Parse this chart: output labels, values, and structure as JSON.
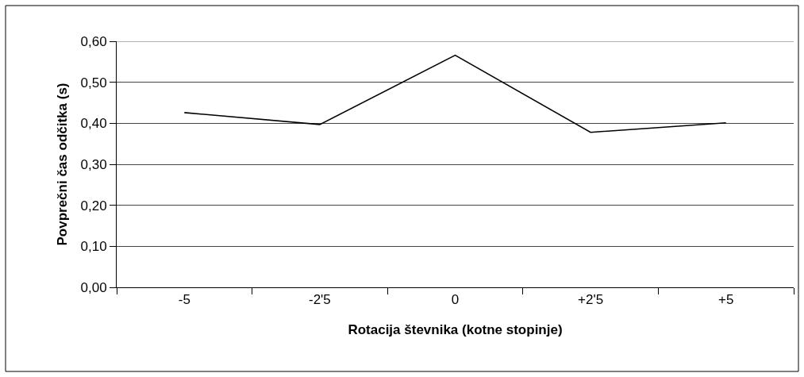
{
  "chart_data": {
    "type": "line",
    "xlabel": "Rotacija števnika (kotne stopinje)",
    "ylabel": "Povprečni čas odčitka (s)",
    "categories": [
      "-5",
      "-2'5",
      "0",
      "+2'5",
      "+5"
    ],
    "series": [
      {
        "color": "#000000",
        "values": [
          0.426,
          0.397,
          0.566,
          0.378,
          0.401
        ]
      }
    ],
    "ylim": [
      0,
      0.6
    ],
    "yticks": [
      {
        "value": 0,
        "label": "0,00"
      },
      {
        "value": 0.1,
        "label": "0,10"
      },
      {
        "value": 0.2,
        "label": "0,20"
      },
      {
        "value": 0.3,
        "label": "0,30"
      },
      {
        "value": 0.4,
        "label": "0,40"
      },
      {
        "value": 0.5,
        "label": "0,50"
      },
      {
        "value": 0.6,
        "label": "0,60"
      }
    ],
    "grid": "y"
  }
}
